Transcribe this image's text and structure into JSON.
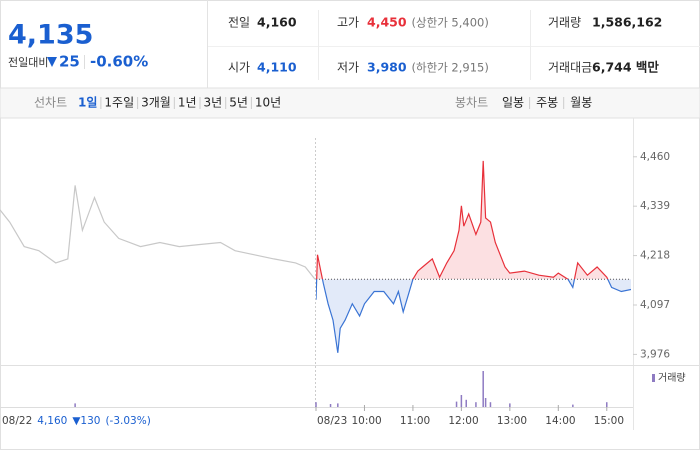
{
  "quote": {
    "price": "4,135",
    "change_label": "전일대비",
    "change": "25",
    "change_pct": "-0.60%",
    "rows": [
      [
        {
          "label": "전일",
          "value": "4,160"
        },
        {
          "label": "고가",
          "value": "4,450",
          "extra": "(상한가 5,400)"
        },
        {
          "label": "거래량",
          "value": "1,586,162"
        }
      ],
      [
        {
          "label": "시가",
          "value": "4,110"
        },
        {
          "label": "저가",
          "value": "3,980",
          "extra": "(하한가 2,915)"
        },
        {
          "label": "거래대금",
          "value": "6,744 백만"
        }
      ]
    ]
  },
  "tabs": {
    "line_label": "선차트",
    "line": [
      "1일",
      "1주일",
      "3개월",
      "1년",
      "3년",
      "5년",
      "10년"
    ],
    "candle_label": "봉차트",
    "candle": [
      "일봉",
      "주봉",
      "월봉"
    ]
  },
  "chart_data": {
    "type": "line",
    "xlim": [
      9,
      15.5
    ],
    "ylim": [
      3950,
      4555
    ],
    "yticks": [
      {
        "value": 4460,
        "label": "4,460"
      },
      {
        "value": 4339,
        "label": "4,339"
      },
      {
        "value": 4218,
        "label": "4,218"
      },
      {
        "value": 4097,
        "label": "4,097"
      },
      {
        "value": 3976,
        "label": "3,976"
      }
    ],
    "xticks": [
      {
        "value": 9,
        "label": "08/23"
      },
      {
        "value": 10,
        "label": "10:00"
      },
      {
        "value": 11,
        "label": "11:00"
      },
      {
        "value": 12,
        "label": "12:00"
      },
      {
        "value": 13,
        "label": "13:00"
      },
      {
        "value": 14,
        "label": "14:00"
      },
      {
        "value": 15,
        "label": "15:00"
      }
    ],
    "baseline": 4160,
    "up_color": "#e8303a",
    "down_color": "#3a74d4",
    "series": [
      {
        "color": "#c8c8c8",
        "x": [
          9.0,
          9.2,
          9.5,
          9.8,
          10.15,
          10.4,
          10.5,
          10.55,
          10.7,
          10.95,
          11.15,
          11.45,
          11.9,
          12.3,
          12.7,
          13.1,
          13.55,
          13.85,
          14.25,
          14.65,
          15.1,
          15.3,
          15.5
        ],
        "values": [
          4330,
          4300,
          4240,
          4230,
          4200,
          4210,
          4330,
          4390,
          4280,
          4360,
          4300,
          4260,
          4240,
          4250,
          4240,
          4245,
          4250,
          4230,
          4220,
          4210,
          4200,
          4190,
          4160
        ]
      },
      {
        "x": [
          9.0,
          9.03,
          9.1,
          9.15,
          9.25,
          9.35,
          9.45,
          9.5,
          9.6,
          9.75,
          9.9,
          10.0,
          10.2,
          10.4,
          10.6,
          10.7,
          10.8,
          10.9,
          11.0,
          11.1,
          11.2,
          11.4,
          11.55,
          11.7,
          11.85,
          11.95,
          12.0,
          12.05,
          12.15,
          12.3,
          12.4,
          12.45,
          12.5,
          12.6,
          12.7,
          12.8,
          12.9,
          13.0,
          13.3,
          13.6,
          13.9,
          14.0,
          14.2,
          14.3,
          14.4,
          14.6,
          14.8,
          15.0,
          15.1,
          15.3,
          15.5
        ],
        "values": [
          4110,
          4220,
          4180,
          4150,
          4100,
          4060,
          3980,
          4040,
          4060,
          4100,
          4070,
          4100,
          4130,
          4130,
          4100,
          4130,
          4080,
          4120,
          4160,
          4180,
          4190,
          4210,
          4165,
          4200,
          4230,
          4280,
          4340,
          4290,
          4320,
          4270,
          4300,
          4450,
          4310,
          4300,
          4250,
          4220,
          4190,
          4175,
          4180,
          4170,
          4165,
          4175,
          4160,
          4140,
          4200,
          4170,
          4190,
          4165,
          4140,
          4130,
          4135
        ]
      }
    ],
    "volume": {
      "name": "거래량",
      "color": "#8e7bc2",
      "x": [
        10.55,
        9.0,
        9.3,
        9.45,
        11.9,
        12.0,
        12.1,
        12.3,
        12.45,
        12.5,
        12.6,
        13.0,
        14.3,
        15.0
      ],
      "values": [
        6000,
        8000,
        5000,
        6000,
        9000,
        20000,
        12000,
        8000,
        60000,
        15000,
        8000,
        6000,
        4000,
        8000
      ],
      "panel": [
        0,
        1,
        1,
        1,
        1,
        1,
        1,
        1,
        1,
        1,
        1,
        1,
        1,
        1
      ]
    },
    "footer": {
      "date": "08/22",
      "price": "4,160",
      "change": "▼130",
      "change_pct": "(-3.03%)"
    }
  }
}
